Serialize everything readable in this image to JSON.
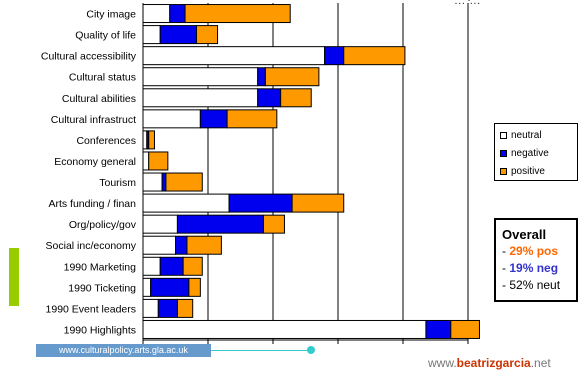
{
  "chart_data": {
    "type": "bar",
    "orientation": "horizontal",
    "stacked": true,
    "categories": [
      "City image",
      "Quality of life",
      "Cultural accessibility",
      "Cultural status",
      "Cultural abilities",
      "Cultural infrastruct",
      "Conferences",
      "Economy general",
      "Tourism",
      "Arts funding / finan",
      "Org/policy/gov",
      "Social inc/economy",
      "1990 Marketing",
      "1990 Ticketing",
      "1990 Event leaders",
      "1990 Highlights"
    ],
    "series": [
      {
        "name": "neutral",
        "color": "#ffffff",
        "values": [
          14,
          9,
          95,
          60,
          60,
          30,
          2,
          3,
          10,
          45,
          18,
          17,
          9,
          4,
          8,
          148
        ]
      },
      {
        "name": "negative",
        "color": "#0000ee",
        "values": [
          8,
          19,
          10,
          4,
          12,
          14,
          1,
          0,
          2,
          33,
          45,
          6,
          12,
          20,
          10,
          13
        ]
      },
      {
        "name": "positive",
        "color": "#ff9900",
        "values": [
          55,
          11,
          32,
          28,
          16,
          26,
          3,
          10,
          19,
          27,
          11,
          18,
          10,
          6,
          8,
          15
        ]
      }
    ],
    "xlim": [
      0,
      170
    ],
    "grid": true,
    "legend_position": "right"
  },
  "legend": {
    "items": [
      {
        "label": "neutral",
        "color": "#ffffff"
      },
      {
        "label": "negative",
        "color": "#0000ee"
      },
      {
        "label": "positive",
        "color": "#ff9900"
      }
    ]
  },
  "overall": {
    "title": "Overall",
    "pos": "29% pos",
    "neg": "19% neg",
    "neut": "52% neut",
    "dash": "-"
  },
  "footer": {
    "url": "www.culturalpolicy.arts.gla.ac.uk",
    "site_prefix": "www.",
    "site_brand": "beatrizgarcia",
    "site_suffix": ".net"
  }
}
